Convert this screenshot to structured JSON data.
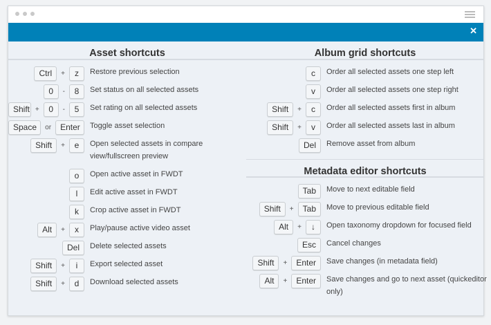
{
  "window": {
    "close_icon": "close-icon",
    "menu_icon": "hamburger-icon"
  },
  "asset": {
    "title": "Asset shortcuts",
    "rows": [
      {
        "keys": [
          "Ctrl",
          "+",
          "z"
        ],
        "desc": "Restore previous selection"
      },
      {
        "keys": [
          "0",
          "-",
          "8"
        ],
        "desc": "Set status on all selected assets"
      },
      {
        "keys": [
          "Shift",
          "+",
          "0",
          "-",
          "5"
        ],
        "desc": "Set rating on all selected assets"
      },
      {
        "keys": [
          "Space",
          "or",
          "Enter"
        ],
        "desc": "Toggle asset selection"
      },
      {
        "keys": [
          "Shift",
          "+",
          "e"
        ],
        "desc": "Open selected assets in compare view/fullscreen preview"
      },
      {
        "keys": [
          "o"
        ],
        "desc": "Open active asset in FWDT"
      },
      {
        "keys": [
          "l"
        ],
        "desc": "Edit active asset in FWDT"
      },
      {
        "keys": [
          "k"
        ],
        "desc": "Crop active asset in FWDT"
      },
      {
        "keys": [
          "Alt",
          "+",
          "x"
        ],
        "desc": "Play/pause active video asset"
      },
      {
        "keys": [
          "Del"
        ],
        "desc": "Delete selected assets"
      },
      {
        "keys": [
          "Shift",
          "+",
          "i"
        ],
        "desc": "Export selected asset"
      },
      {
        "keys": [
          "Shift",
          "+",
          "d"
        ],
        "desc": "Download selected assets"
      }
    ]
  },
  "album": {
    "title": "Album grid shortcuts",
    "rows": [
      {
        "keys": [
          "c"
        ],
        "desc": "Order all selected assets one step left"
      },
      {
        "keys": [
          "v"
        ],
        "desc": "Order all selected assets one step right"
      },
      {
        "keys": [
          "Shift",
          "+",
          "c"
        ],
        "desc": "Order all selected assets first in album"
      },
      {
        "keys": [
          "Shift",
          "+",
          "v"
        ],
        "desc": "Order all selected assets last in album"
      },
      {
        "keys": [
          "Del"
        ],
        "desc": "Remove asset from album"
      }
    ]
  },
  "meta": {
    "title": "Metadata editor shortcuts",
    "rows": [
      {
        "keys": [
          "Tab"
        ],
        "desc": "Move to next editable field"
      },
      {
        "keys": [
          "Shift",
          "+",
          "Tab"
        ],
        "desc": "Move to previous editable field"
      },
      {
        "keys": [
          "Alt",
          "+",
          "↓"
        ],
        "desc": "Open taxonomy dropdown for focused field"
      },
      {
        "keys": [
          "Esc"
        ],
        "desc": "Cancel changes"
      },
      {
        "keys": [
          "Shift",
          "+",
          "Enter"
        ],
        "desc": "Save changes (in metadata field)"
      },
      {
        "keys": [
          "Alt",
          "+",
          "Enter"
        ],
        "desc": "Save changes and go to next asset (quickeditor only)"
      }
    ]
  }
}
